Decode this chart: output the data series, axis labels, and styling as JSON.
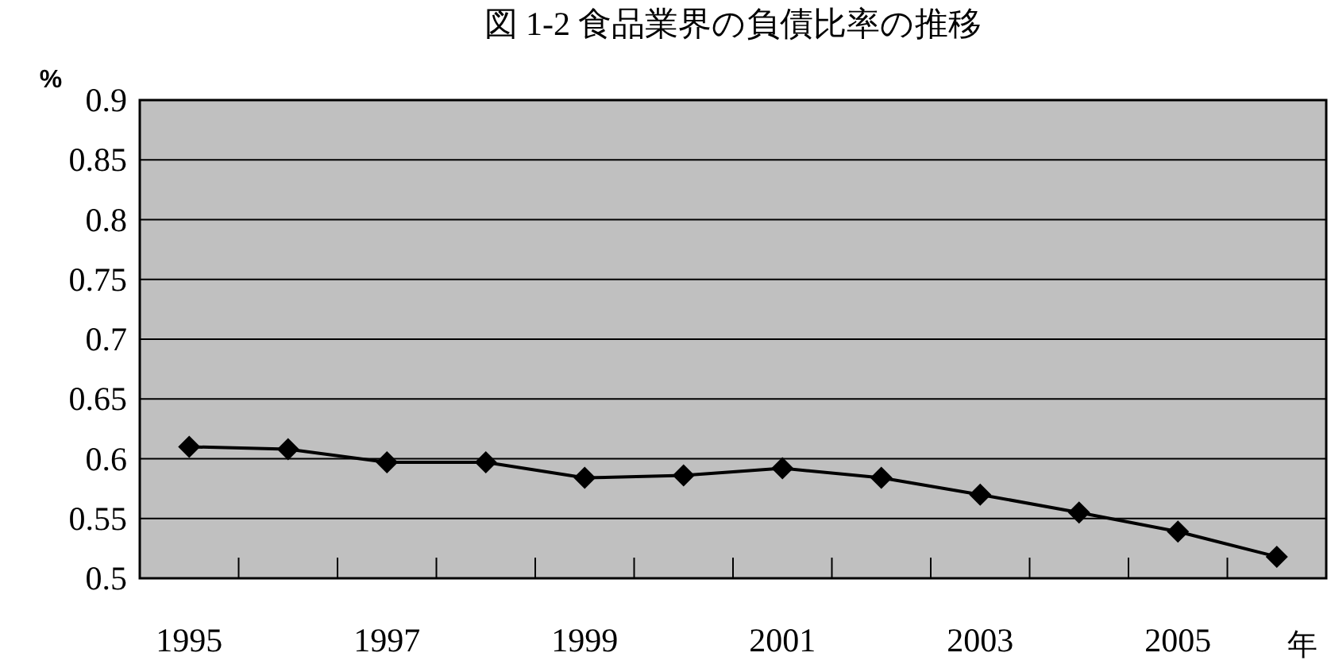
{
  "chart_data": {
    "type": "line",
    "title": "図 1-2 食品業界の負債比率の推移",
    "ylabel": "%",
    "xlabel": "年",
    "categories": [
      "1995",
      null,
      "1997",
      null,
      "1999",
      null,
      "2001",
      null,
      "2003",
      null,
      "2005",
      null
    ],
    "series": [
      {
        "color": "#000000",
        "values": [
          0.61,
          0.608,
          0.597,
          0.597,
          0.584,
          0.586,
          0.592,
          0.584,
          0.57,
          0.555,
          0.539,
          0.518
        ]
      }
    ],
    "ylim": [
      0.5,
      0.9
    ],
    "yticks": [
      0.5,
      0.55,
      0.6,
      0.65,
      0.7,
      0.75,
      0.8,
      0.85,
      0.9
    ],
    "grid": "y",
    "marker": "diamond",
    "line_style": "solid"
  }
}
